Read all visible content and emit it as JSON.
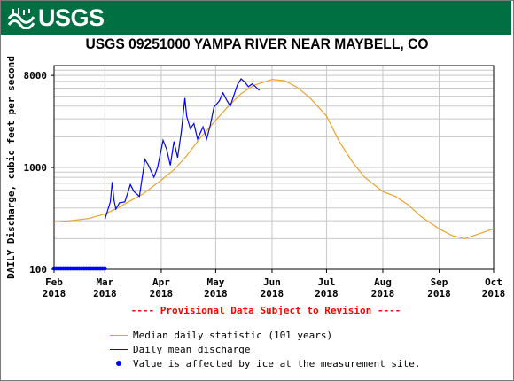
{
  "header": {
    "agency": "USGS"
  },
  "notice": "---- Provisional Data Subject to Revision ----",
  "colors": {
    "banner": "#006f41",
    "median": "#e8a42c",
    "daily": "#0000ff",
    "ice": "#0000ff",
    "notice": "#ff0000",
    "grid": "#c8c8c8"
  },
  "chart_data": {
    "type": "line",
    "title": "USGS 09251000 YAMPA RIVER NEAR MAYBELL, CO",
    "ylabel": "DAILY Discharge, cubic feet per second",
    "yscale": "log",
    "ylim": [
      100,
      10000
    ],
    "yticks": [
      {
        "value": 100,
        "label": "100"
      },
      {
        "value": 1000,
        "label": "1000"
      },
      {
        "value": 8000,
        "label": "8000"
      }
    ],
    "xlim": [
      "2018-02-01",
      "2018-10-01"
    ],
    "xticks": [
      {
        "date": "2018-02-01",
        "month": "Feb",
        "year": "2018"
      },
      {
        "date": "2018-03-01",
        "month": "Mar",
        "year": "2018"
      },
      {
        "date": "2018-04-01",
        "month": "Apr",
        "year": "2018"
      },
      {
        "date": "2018-05-01",
        "month": "May",
        "year": "2018"
      },
      {
        "date": "2018-06-01",
        "month": "Jun",
        "year": "2018"
      },
      {
        "date": "2018-07-01",
        "month": "Jul",
        "year": "2018"
      },
      {
        "date": "2018-08-01",
        "month": "Aug",
        "year": "2018"
      },
      {
        "date": "2018-09-01",
        "month": "Sep",
        "year": "2018"
      },
      {
        "date": "2018-10-01",
        "month": "Oct",
        "year": "2018"
      }
    ],
    "series": [
      {
        "name": "Median daily statistic (101 years)",
        "color": "#e8a42c",
        "points": [
          [
            "2018-02-01",
            290
          ],
          [
            "2018-02-10",
            300
          ],
          [
            "2018-02-20",
            315
          ],
          [
            "2018-03-01",
            350
          ],
          [
            "2018-03-08",
            400
          ],
          [
            "2018-03-15",
            470
          ],
          [
            "2018-03-22",
            550
          ],
          [
            "2018-04-01",
            750
          ],
          [
            "2018-04-08",
            950
          ],
          [
            "2018-04-15",
            1300
          ],
          [
            "2018-04-22",
            1900
          ],
          [
            "2018-05-01",
            2900
          ],
          [
            "2018-05-08",
            4000
          ],
          [
            "2018-05-15",
            5300
          ],
          [
            "2018-05-22",
            6400
          ],
          [
            "2018-06-01",
            7300
          ],
          [
            "2018-06-08",
            7100
          ],
          [
            "2018-06-15",
            6100
          ],
          [
            "2018-06-22",
            4800
          ],
          [
            "2018-07-01",
            3200
          ],
          [
            "2018-07-08",
            1800
          ],
          [
            "2018-07-15",
            1150
          ],
          [
            "2018-07-22",
            800
          ],
          [
            "2018-08-01",
            580
          ],
          [
            "2018-08-08",
            520
          ],
          [
            "2018-08-15",
            430
          ],
          [
            "2018-08-22",
            330
          ],
          [
            "2018-09-01",
            250
          ],
          [
            "2018-09-08",
            215
          ],
          [
            "2018-09-15",
            200
          ],
          [
            "2018-09-22",
            220
          ],
          [
            "2018-10-01",
            250
          ]
        ]
      },
      {
        "name": "Daily mean discharge",
        "color": "#0000ff",
        "points": [
          [
            "2018-03-01",
            310
          ],
          [
            "2018-03-04",
            460
          ],
          [
            "2018-03-05",
            720
          ],
          [
            "2018-03-06",
            480
          ],
          [
            "2018-03-07",
            390
          ],
          [
            "2018-03-09",
            450
          ],
          [
            "2018-03-12",
            460
          ],
          [
            "2018-03-15",
            680
          ],
          [
            "2018-03-17",
            580
          ],
          [
            "2018-03-20",
            520
          ],
          [
            "2018-03-23",
            1200
          ],
          [
            "2018-03-25",
            1050
          ],
          [
            "2018-03-28",
            800
          ],
          [
            "2018-03-30",
            1000
          ],
          [
            "2018-04-02",
            1850
          ],
          [
            "2018-04-04",
            1500
          ],
          [
            "2018-04-06",
            1050
          ],
          [
            "2018-04-08",
            1800
          ],
          [
            "2018-04-10",
            1250
          ],
          [
            "2018-04-12",
            2200
          ],
          [
            "2018-04-14",
            4800
          ],
          [
            "2018-04-15",
            3200
          ],
          [
            "2018-04-17",
            2400
          ],
          [
            "2018-04-19",
            2700
          ],
          [
            "2018-04-21",
            1900
          ],
          [
            "2018-04-24",
            2500
          ],
          [
            "2018-04-26",
            1900
          ],
          [
            "2018-04-28",
            2600
          ],
          [
            "2018-04-30",
            3900
          ],
          [
            "2018-05-03",
            4500
          ],
          [
            "2018-05-05",
            5400
          ],
          [
            "2018-05-07",
            4600
          ],
          [
            "2018-05-09",
            4000
          ],
          [
            "2018-05-11",
            5100
          ],
          [
            "2018-05-13",
            6500
          ],
          [
            "2018-05-15",
            7400
          ],
          [
            "2018-05-17",
            6900
          ],
          [
            "2018-05-19",
            6200
          ],
          [
            "2018-05-21",
            6600
          ],
          [
            "2018-05-23",
            6200
          ],
          [
            "2018-05-25",
            5700
          ]
        ]
      }
    ],
    "ice_flags": {
      "label": "Value is affected by ice at the measurement site.",
      "start": "2018-02-01",
      "end": "2018-03-01",
      "value": 100
    },
    "grid": true,
    "legend_position": "bottom"
  }
}
